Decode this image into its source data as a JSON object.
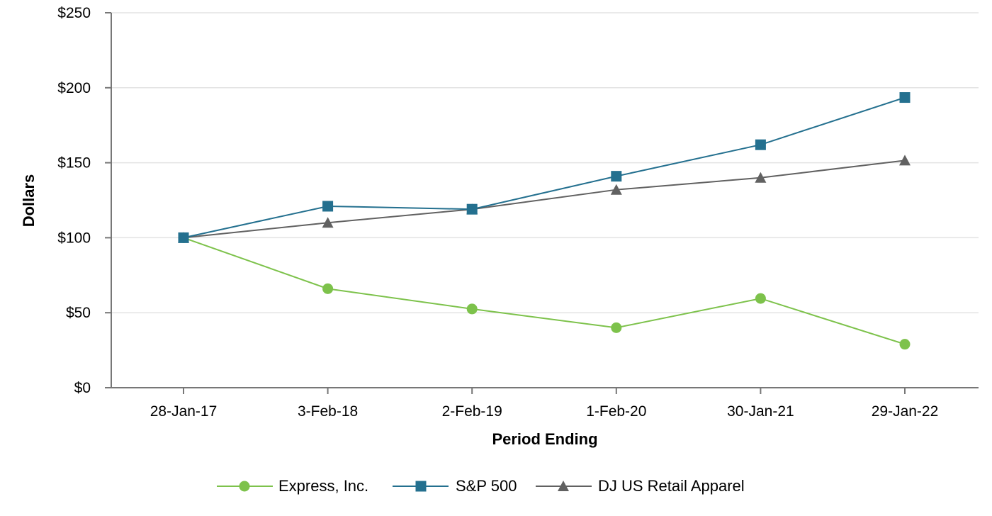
{
  "chart_data": {
    "type": "line",
    "title": "",
    "xlabel": "Period Ending",
    "ylabel": "Dollars",
    "categories": [
      "28-Jan-17",
      "3-Feb-18",
      "2-Feb-19",
      "1-Feb-20",
      "30-Jan-21",
      "29-Jan-22"
    ],
    "ylim": [
      0,
      250
    ],
    "yticks": [
      0,
      50,
      100,
      150,
      200,
      250
    ],
    "ytick_labels": [
      "$0",
      "$50",
      "$100",
      "$150",
      "$200",
      "$250"
    ],
    "grid": true,
    "legend_position": "bottom",
    "series": [
      {
        "name": "Express, Inc.",
        "marker": "circle",
        "color": "#7dc24b",
        "values": [
          100,
          66,
          52.5,
          40,
          59.5,
          29
        ]
      },
      {
        "name": "S&P 500",
        "marker": "square",
        "color": "#24708f",
        "values": [
          100,
          121,
          119,
          141,
          162,
          193.5
        ]
      },
      {
        "name": "DJ US Retail Apparel",
        "marker": "triangle",
        "color": "#616161",
        "values": [
          100,
          110,
          119,
          132,
          140,
          151.5
        ]
      }
    ]
  }
}
